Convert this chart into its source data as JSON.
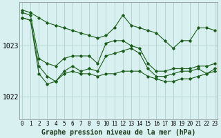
{
  "title": "Graphe pression niveau de la mer (hPa)",
  "bg_color": "#d8f0f0",
  "grid_color": "#b0d0d0",
  "line_color": "#1a5c1a",
  "ylabel_ticks": [
    1022,
    1023
  ],
  "xlim": [
    -0.3,
    23.3
  ],
  "ylim": [
    1021.55,
    1023.85
  ],
  "series": {
    "max": [
      1023.7,
      1023.65,
      1023.55,
      1023.45,
      1023.4,
      1023.35,
      1023.3,
      1023.25,
      1023.2,
      1023.15,
      1023.2,
      1023.35,
      1023.6,
      1023.4,
      1023.35,
      1023.3,
      1023.25,
      1023.1,
      1022.95,
      1023.1,
      1023.1,
      1023.35,
      1023.35,
      1023.3
    ],
    "actual": [
      1023.65,
      1023.6,
      1022.75,
      1022.65,
      1022.6,
      1022.75,
      1022.8,
      1022.8,
      1022.8,
      1022.65,
      1023.05,
      1023.1,
      1023.1,
      1023.0,
      1022.95,
      1022.65,
      1022.5,
      1022.5,
      1022.55,
      1022.55,
      1022.55,
      1022.6,
      1022.6,
      1022.65
    ],
    "current": [
      1023.55,
      1023.5,
      1022.6,
      1022.4,
      1022.3,
      1022.5,
      1022.6,
      1022.5,
      1022.55,
      1022.5,
      1022.8,
      1022.85,
      1022.9,
      1022.95,
      1022.85,
      1022.55,
      1022.4,
      1022.4,
      1022.45,
      1022.5,
      1022.5,
      1022.55,
      1022.45,
      1022.55
    ],
    "min": [
      1023.55,
      1023.5,
      1022.45,
      1022.25,
      1022.3,
      1022.45,
      1022.5,
      1022.45,
      1022.45,
      1022.4,
      1022.45,
      1022.45,
      1022.5,
      1022.5,
      1022.5,
      1022.4,
      1022.35,
      1022.3,
      1022.3,
      1022.35,
      1022.35,
      1022.4,
      1022.45,
      1022.5
    ]
  },
  "xtick_labels": [
    "0",
    "1",
    "2",
    "3",
    "4",
    "5",
    "6",
    "7",
    "8",
    "9",
    "10",
    "11",
    "12",
    "13",
    "14",
    "15",
    "16",
    "17",
    "18",
    "19",
    "20",
    "21",
    "22",
    "23"
  ],
  "title_fontsize": 7,
  "tick_fontsize": 5.5,
  "ytick_fontsize": 7
}
